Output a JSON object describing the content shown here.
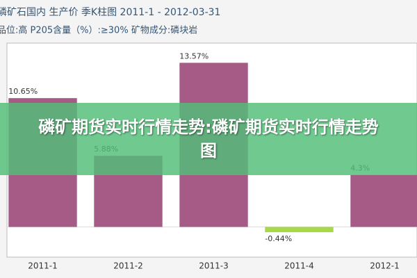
{
  "chart_data": {
    "type": "bar",
    "title": "磷矿石国内 生产价 季K柱图 2011-1 - 2012-03-31",
    "subtitle": "品位:高 P205含量（%）:≥30% 矿物成分:磷块岩",
    "categories": [
      "2011-1",
      "2011-2",
      "2011-3",
      "2011-4",
      "2012-1"
    ],
    "values": [
      10.65,
      5.88,
      13.57,
      -0.44,
      4.3
    ],
    "value_labels": [
      "10.65%",
      "5.88%",
      "13.57%",
      "-0.44%",
      "4.3%"
    ],
    "color": "#a65b87",
    "negative_color": "#a6d84a",
    "ylim": [
      -2.5,
      15.2
    ],
    "overlay_text": "磷矿期货实时行情走势:磷矿期货实时行情走势图"
  }
}
